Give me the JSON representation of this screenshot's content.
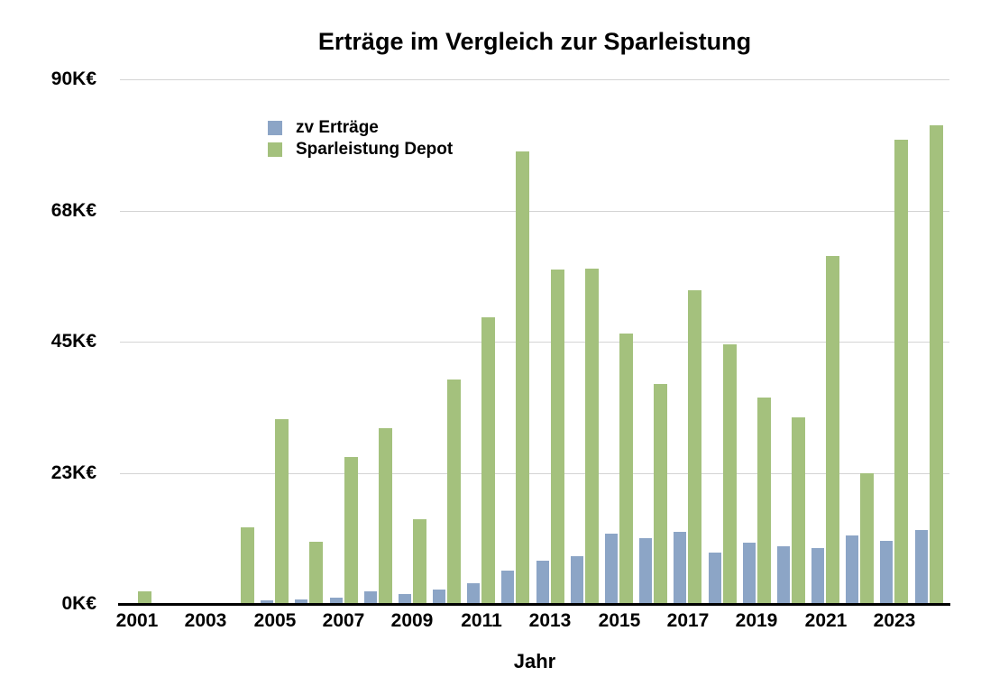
{
  "chart_data": {
    "type": "bar",
    "title": "Erträge im Vergleich zur Sparleistung",
    "xlabel": "Jahr",
    "ylabel": "",
    "unit": "K€",
    "categories": [
      2001,
      2002,
      2003,
      2004,
      2005,
      2006,
      2007,
      2008,
      2009,
      2010,
      2011,
      2012,
      2013,
      2014,
      2015,
      2016,
      2017,
      2018,
      2019,
      2020,
      2021,
      2022,
      2023,
      2024
    ],
    "series": [
      {
        "name": "zv Erträge",
        "color": "#8ca5c6",
        "values": [
          0,
          0,
          0,
          0,
          0.4,
          0.6,
          0.9,
          2.0,
          1.6,
          2.3,
          3.4,
          5.5,
          7.3,
          8.1,
          11.9,
          11.1,
          12.2,
          8.7,
          10.4,
          9.8,
          9.5,
          11.6,
          10.7,
          12.6
        ]
      },
      {
        "name": "Sparleistung Depot",
        "color": "#a4c17d",
        "values": [
          2.0,
          0,
          0,
          13.0,
          31.5,
          10.5,
          25.0,
          30.0,
          14.4,
          38.4,
          49.0,
          77.5,
          57.2,
          57.4,
          46.2,
          37.5,
          53.6,
          44.4,
          35.2,
          31.8,
          59.5,
          22.3,
          79.5,
          82.0
        ]
      }
    ],
    "ylim": [
      0,
      90
    ],
    "yticks": [
      {
        "value": 0,
        "label": "0K€"
      },
      {
        "value": 22.5,
        "label": "23K€"
      },
      {
        "value": 45,
        "label": "45K€"
      },
      {
        "value": 67.5,
        "label": "68K€"
      },
      {
        "value": 90,
        "label": "90K€"
      }
    ],
    "xticks": [
      "2001",
      "2003",
      "2005",
      "2007",
      "2009",
      "2011",
      "2013",
      "2015",
      "2017",
      "2019",
      "2021",
      "2023"
    ],
    "grid": "horizontal",
    "legend_position": "inside-top-left",
    "colors": {
      "axis": "#000000",
      "gridline": "#d4d4d4",
      "text": "#000000",
      "background": "#ffffff"
    }
  }
}
